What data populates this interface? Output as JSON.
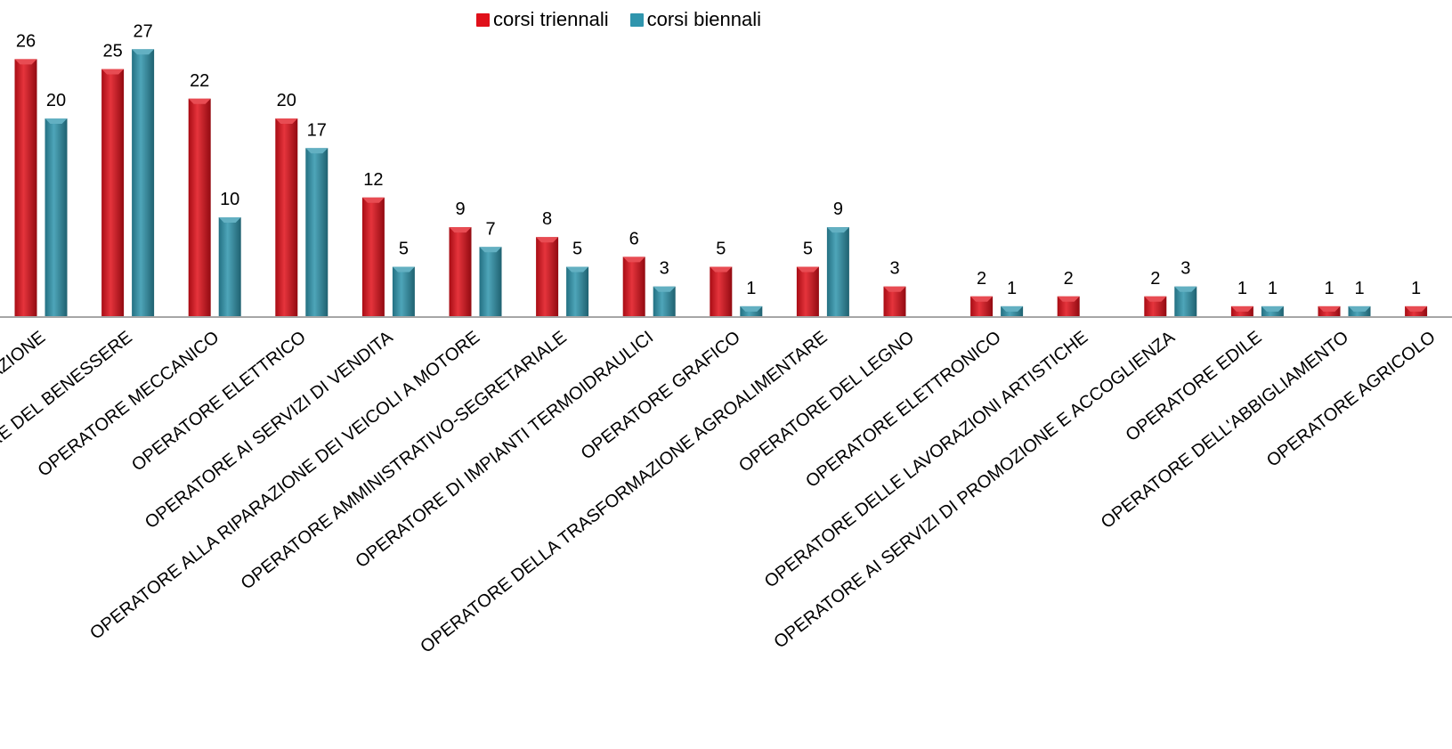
{
  "chart_data": {
    "type": "bar",
    "title": "",
    "xlabel": "",
    "ylabel": "",
    "ylim": [
      0,
      27
    ],
    "grid": false,
    "legend_position": "top",
    "categories": [
      "OPERATORE DELLA RISTORAZIONE",
      "OPERATORE DEL BENESSERE",
      "OPERATORE MECCANICO",
      "OPERATORE ELETTRICO",
      "OPERATORE AI SERVIZI DI VENDITA",
      "OPERATORE ALLA RIPARAZIONE DEI VEICOLI A MOTORE",
      "OPERATORE AMMINISTRATIVO-SEGRETARIALE",
      "OPERATORE DI IMPIANTI TERMOIDRAULICI",
      "OPERATORE GRAFICO",
      "OPERATORE DELLA TRASFORMAZIONE AGROALIMENTARE",
      "OPERATORE DEL LEGNO",
      "OPERATORE ELETTRONICO",
      "OPERATORE DELLE LAVORAZIONI ARTISTICHE",
      "OPERATORE AI SERVIZI DI PROMOZIONE E ACCOGLIENZA",
      "OPERATORE EDILE",
      "OPERATORE DELL'ABBIGLIAMENTO",
      "OPERATORE AGRICOLO"
    ],
    "series": [
      {
        "name": "corsi triennali",
        "color": "#e0101a",
        "values": [
          26,
          25,
          22,
          20,
          12,
          9,
          8,
          6,
          5,
          5,
          3,
          2,
          2,
          2,
          1,
          1,
          1
        ]
      },
      {
        "name": "corsi biennali",
        "color": "#2f95ad",
        "values": [
          20,
          27,
          10,
          17,
          5,
          7,
          5,
          3,
          1,
          9,
          null,
          1,
          null,
          3,
          1,
          1,
          null
        ]
      }
    ]
  }
}
